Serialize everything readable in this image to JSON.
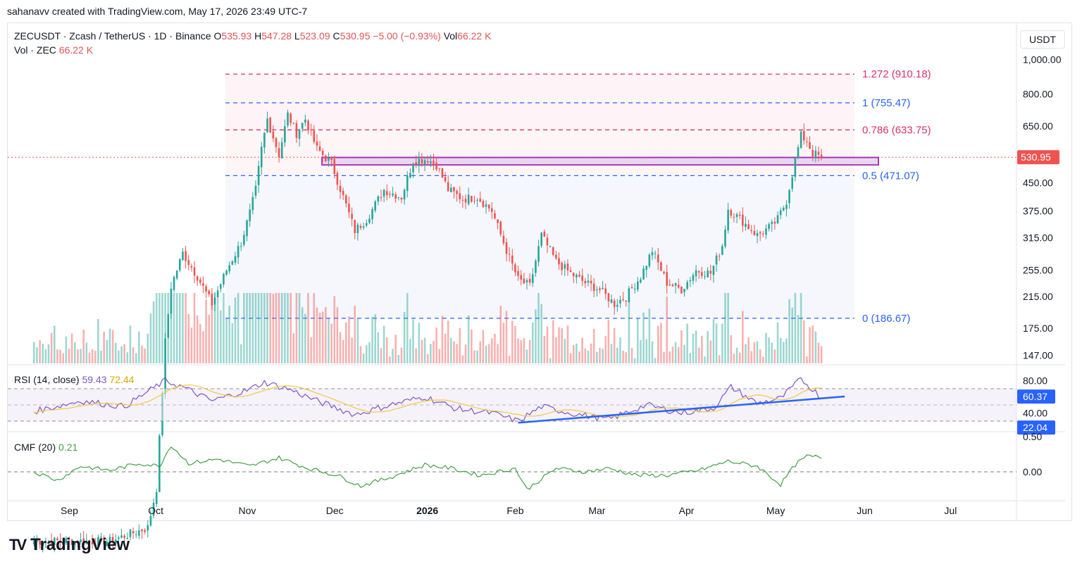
{
  "credit": "sahanavv created with TradingView.com, May 17, 2026 23:49 UTC-7",
  "header": {
    "symbol": "ZECUSDT · Zcash / TetherUS · 1D · Binance",
    "open_label": "O",
    "open": "535.93",
    "high_label": "H",
    "high": "547.28",
    "low_label": "L",
    "low": "523.09",
    "close_label": "C",
    "close": "530.95",
    "change": "−5.00 (−0.93%)",
    "vol_label": "Vol",
    "vol": "66.22 K",
    "vol_line_label": "Vol · ZEC",
    "vol_line_value": "66.22 K"
  },
  "currency": "USDT",
  "logo_text": "TradingView",
  "colors": {
    "up": "#26a69a",
    "down": "#ef5350",
    "fib_red": "#d6336c",
    "fib_blue": "#2962ff",
    "box": "#9c27b0",
    "rsi": "#7e57c2",
    "rsi_ma": "#f5c842",
    "cmf": "#43a047",
    "trend": "#2962ff"
  },
  "chart_data": [
    {
      "type": "candlestick",
      "title": "ZECUSDT · Zcash / TetherUS · 1D · Binance",
      "price_scale": "log",
      "y_ticks": [
        "1,000.00",
        "800.00",
        "650.00",
        "450.00",
        "375.00",
        "315.00",
        "255.00",
        "215.00",
        "175.00",
        "147.00"
      ],
      "x_ticks": [
        "Sep",
        "Oct",
        "Nov",
        "Dec",
        "2026",
        "Feb",
        "Mar",
        "Apr",
        "May",
        "Jun",
        "Jul"
      ],
      "last_price": "530.95",
      "fib_levels": [
        {
          "label": "1.272 (910.18)",
          "value": 910.18
        },
        {
          "label": "1 (755.47)",
          "value": 755.47
        },
        {
          "label": "0.786 (633.75)",
          "value": 633.75
        },
        {
          "label": "0.5 (471.07)",
          "value": 471.07
        },
        {
          "label": "0 (186.67)",
          "value": 186.67
        }
      ],
      "range_box": [
        505,
        530
      ],
      "close_path": [
        [
          "2025-08-20",
          44
        ],
        [
          "2025-09-01",
          44
        ],
        [
          "2025-09-15",
          44
        ],
        [
          "2025-09-28",
          48
        ],
        [
          "2025-10-01",
          62
        ],
        [
          "2025-10-04",
          160
        ],
        [
          "2025-10-06",
          230
        ],
        [
          "2025-10-10",
          285
        ],
        [
          "2025-10-15",
          245
        ],
        [
          "2025-10-20",
          205
        ],
        [
          "2025-10-25",
          255
        ],
        [
          "2025-10-30",
          305
        ],
        [
          "2025-11-02",
          370
        ],
        [
          "2025-11-04",
          430
        ],
        [
          "2025-11-06",
          560
        ],
        [
          "2025-11-08",
          680
        ],
        [
          "2025-11-12",
          540
        ],
        [
          "2025-11-15",
          700
        ],
        [
          "2025-11-18",
          620
        ],
        [
          "2025-11-21",
          680
        ],
        [
          "2025-11-25",
          560
        ],
        [
          "2025-11-30",
          510
        ],
        [
          "2025-12-04",
          410
        ],
        [
          "2025-12-08",
          330
        ],
        [
          "2025-12-12",
          355
        ],
        [
          "2025-12-18",
          430
        ],
        [
          "2025-12-24",
          410
        ],
        [
          "2025-12-28",
          520
        ],
        [
          "2026-01-02",
          525
        ],
        [
          "2026-01-05",
          505
        ],
        [
          "2026-01-09",
          430
        ],
        [
          "2026-01-14",
          405
        ],
        [
          "2026-01-19",
          410
        ],
        [
          "2026-01-24",
          375
        ],
        [
          "2026-01-29",
          290
        ],
        [
          "2026-02-02",
          240
        ],
        [
          "2026-02-06",
          230
        ],
        [
          "2026-02-10",
          320
        ],
        [
          "2026-02-15",
          270
        ],
        [
          "2026-02-20",
          250
        ],
        [
          "2026-02-25",
          235
        ],
        [
          "2026-03-02",
          225
        ],
        [
          "2026-03-07",
          205
        ],
        [
          "2026-03-11",
          215
        ],
        [
          "2026-03-16",
          245
        ],
        [
          "2026-03-20",
          290
        ],
        [
          "2026-03-25",
          235
        ],
        [
          "2026-03-30",
          225
        ],
        [
          "2026-04-04",
          255
        ],
        [
          "2026-04-09",
          250
        ],
        [
          "2026-04-13",
          300
        ],
        [
          "2026-04-15",
          380
        ],
        [
          "2026-04-20",
          350
        ],
        [
          "2026-04-25",
          320
        ],
        [
          "2026-04-30",
          340
        ],
        [
          "2026-05-02",
          355
        ],
        [
          "2026-05-05",
          400
        ],
        [
          "2026-05-08",
          520
        ],
        [
          "2026-05-10",
          610
        ],
        [
          "2026-05-12",
          590
        ],
        [
          "2026-05-14",
          545
        ],
        [
          "2026-05-17",
          530.95
        ]
      ]
    },
    {
      "type": "line",
      "title": "RSI (14, close)",
      "series": [
        {
          "name": "RSI",
          "last": "59.43"
        },
        {
          "name": "RSI MA",
          "last": "72.44"
        }
      ],
      "bands": [
        70,
        50,
        30
      ],
      "y_ticks": [
        "80.00",
        "40.00"
      ],
      "badges": [
        "60.37",
        "22.04"
      ],
      "trendline": [
        [
          "2026-02-02",
          28
        ],
        [
          "2026-05-25",
          60.4
        ]
      ],
      "rsi_path": [
        [
          "2025-08-20",
          42
        ],
        [
          "2025-09-05",
          55
        ],
        [
          "2025-09-20",
          48
        ],
        [
          "2025-10-04",
          80
        ],
        [
          "2025-10-10",
          72
        ],
        [
          "2025-10-20",
          55
        ],
        [
          "2025-11-01",
          68
        ],
        [
          "2025-11-07",
          78
        ],
        [
          "2025-11-15",
          70
        ],
        [
          "2025-11-25",
          55
        ],
        [
          "2025-12-08",
          38
        ],
        [
          "2025-12-20",
          50
        ],
        [
          "2026-01-01",
          60
        ],
        [
          "2026-01-12",
          45
        ],
        [
          "2026-01-24",
          40
        ],
        [
          "2026-02-02",
          30
        ],
        [
          "2026-02-10",
          48
        ],
        [
          "2026-02-20",
          40
        ],
        [
          "2026-03-05",
          32
        ],
        [
          "2026-03-18",
          50
        ],
        [
          "2026-03-30",
          40
        ],
        [
          "2026-04-10",
          46
        ],
        [
          "2026-04-16",
          72
        ],
        [
          "2026-04-25",
          52
        ],
        [
          "2026-05-03",
          58
        ],
        [
          "2026-05-10",
          82
        ],
        [
          "2026-05-17",
          59.43
        ]
      ]
    },
    {
      "type": "line",
      "title": "CMF (20)",
      "series": [
        {
          "name": "CMF",
          "last": "0.21"
        }
      ],
      "y_ticks": [
        "0.50",
        "0.00"
      ],
      "cmf_path": [
        [
          "2025-08-20",
          0.0
        ],
        [
          "2025-08-28",
          -0.12
        ],
        [
          "2025-09-05",
          0.08
        ],
        [
          "2025-09-15",
          0.02
        ],
        [
          "2025-09-25",
          0.12
        ],
        [
          "2025-10-02",
          0.08
        ],
        [
          "2025-10-06",
          0.38
        ],
        [
          "2025-10-12",
          0.12
        ],
        [
          "2025-10-22",
          0.18
        ],
        [
          "2025-11-02",
          0.08
        ],
        [
          "2025-11-12",
          0.2
        ],
        [
          "2025-11-22",
          0.05
        ],
        [
          "2025-12-02",
          -0.05
        ],
        [
          "2025-12-10",
          -0.2
        ],
        [
          "2025-12-20",
          -0.08
        ],
        [
          "2026-01-01",
          0.1
        ],
        [
          "2026-01-10",
          0.05
        ],
        [
          "2026-01-20",
          -0.05
        ],
        [
          "2026-02-01",
          0.05
        ],
        [
          "2026-02-05",
          -0.25
        ],
        [
          "2026-02-15",
          0.05
        ],
        [
          "2026-02-25",
          0.0
        ],
        [
          "2026-03-05",
          0.05
        ],
        [
          "2026-03-15",
          -0.05
        ],
        [
          "2026-03-25",
          -0.05
        ],
        [
          "2026-04-05",
          0.02
        ],
        [
          "2026-04-15",
          0.15
        ],
        [
          "2026-04-25",
          0.08
        ],
        [
          "2026-05-03",
          -0.18
        ],
        [
          "2026-05-08",
          0.1
        ],
        [
          "2026-05-12",
          0.22
        ],
        [
          "2026-05-17",
          0.21
        ]
      ]
    }
  ]
}
